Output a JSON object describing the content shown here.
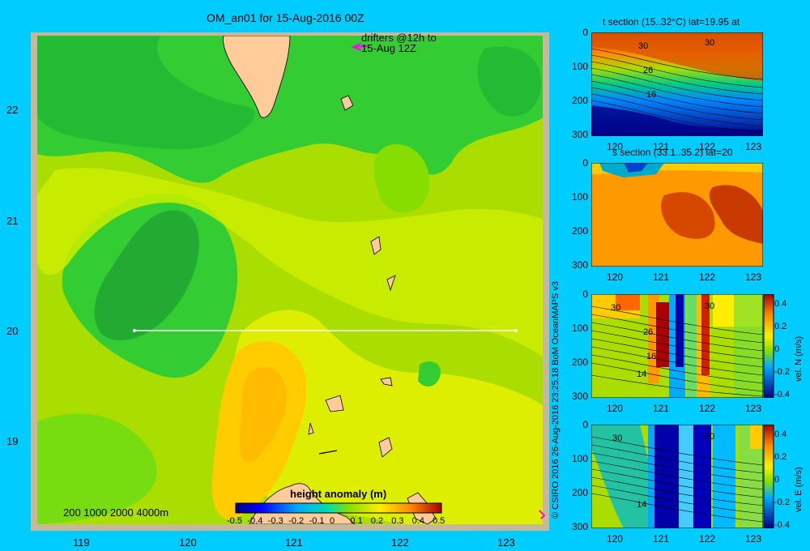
{
  "title": "OM_an01 for 15-Aug-2016 00Z",
  "map": {
    "lat_labels": [
      "22",
      "21",
      "20",
      "19"
    ],
    "lon_labels": [
      "119",
      "120",
      "121",
      "122",
      "123"
    ],
    "drifters_line1": "drifters @12h to",
    "drifters_line2": "15-Aug 12Z",
    "depth_legend": "200 1000 2000 4000m",
    "colorbar_title": "height anomaly (m)",
    "colorbar_ticks": [
      "-0.5",
      "-0.4",
      "-0.3",
      "-0.2",
      "-0.1",
      "0",
      "0.1",
      "0.2",
      "0.3",
      "0.4",
      "0.5"
    ],
    "section_line": {
      "lat": 20,
      "lon_start": 119.5,
      "lon_end": 123.2
    },
    "colors": {
      "land": "#ffcc99",
      "frame": "#c8b89a",
      "line": "#ffffff"
    }
  },
  "credit": "© CSIRO 2016  26-Aug-2016 23:25:18 BoM OceanMAPS v3",
  "panels": [
    {
      "title": "t section (15..32°C) lat=19.95 at",
      "y_ticks": [
        "0",
        "100",
        "200",
        "300"
      ],
      "x_ticks": [
        "120",
        "121",
        "122",
        "123"
      ],
      "contour_labels": [
        "30",
        "30",
        "26",
        "16"
      ],
      "cb_label": ""
    },
    {
      "title": "s section (33.1..35.2) lat=20",
      "y_ticks": [
        "0",
        "100",
        "200",
        "300"
      ],
      "x_ticks": [
        "120",
        "121",
        "122",
        "123"
      ],
      "contour_labels": [],
      "cb_label": ""
    },
    {
      "title": "",
      "y_ticks": [
        "0",
        "100",
        "200",
        "300"
      ],
      "x_ticks": [
        "120",
        "121",
        "122",
        "123"
      ],
      "contour_labels": [
        "30",
        "30",
        "26",
        "16",
        "14"
      ],
      "cb_ticks": [
        "0.4",
        "0.2",
        "0",
        "-0.2",
        "-0.4"
      ],
      "cb_label": "vel. N (m/s)"
    },
    {
      "title": "",
      "y_ticks": [
        "0",
        "100",
        "200",
        "300"
      ],
      "x_ticks": [
        "120",
        "121",
        "122",
        "123"
      ],
      "contour_labels": [
        "30",
        "30",
        "14"
      ],
      "cb_ticks": [
        "0.4",
        "0.2",
        "0",
        "-0.2",
        "-0.4"
      ],
      "cb_label": "vel. E (m/s)"
    }
  ]
}
